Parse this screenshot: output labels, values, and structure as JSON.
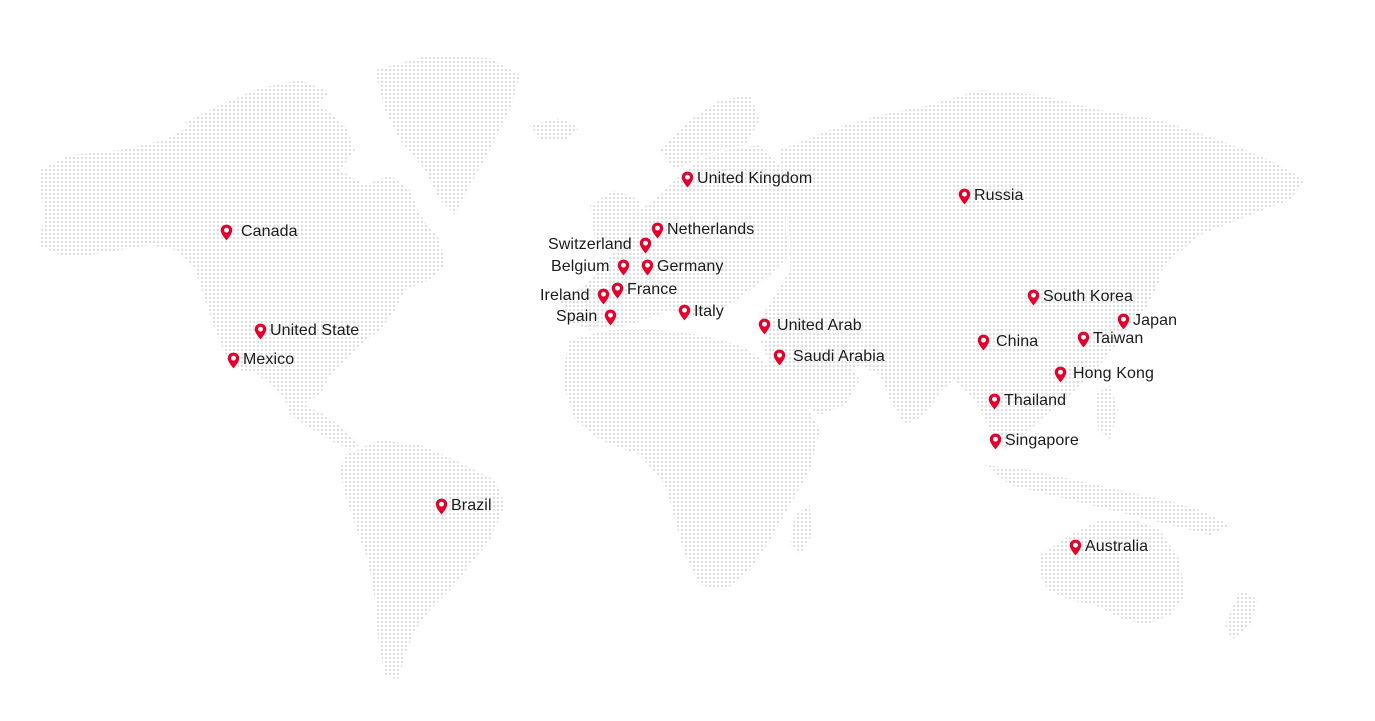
{
  "map": {
    "land_color": "#dedede",
    "pin_color": "#e4002b",
    "pin_icon": "map-pin-icon"
  },
  "locations": [
    {
      "label": "Canada"
    },
    {
      "label": "United State"
    },
    {
      "label": "Mexico"
    },
    {
      "label": "Brazil"
    },
    {
      "label": "United Kingdom"
    },
    {
      "label": "Netherlands"
    },
    {
      "label": "Switzerland"
    },
    {
      "label": "Belgium"
    },
    {
      "label": "Germany"
    },
    {
      "label": "Ireland"
    },
    {
      "label": "France"
    },
    {
      "label": "Spain"
    },
    {
      "label": "Italy"
    },
    {
      "label": "United Arab"
    },
    {
      "label": "Saudi Arabia"
    },
    {
      "label": "Russia"
    },
    {
      "label": "South Korea"
    },
    {
      "label": "Japan"
    },
    {
      "label": "China"
    },
    {
      "label": "Taiwan"
    },
    {
      "label": "Hong Kong"
    },
    {
      "label": "Thailand"
    },
    {
      "label": "Singapore"
    },
    {
      "label": "Australia"
    }
  ]
}
